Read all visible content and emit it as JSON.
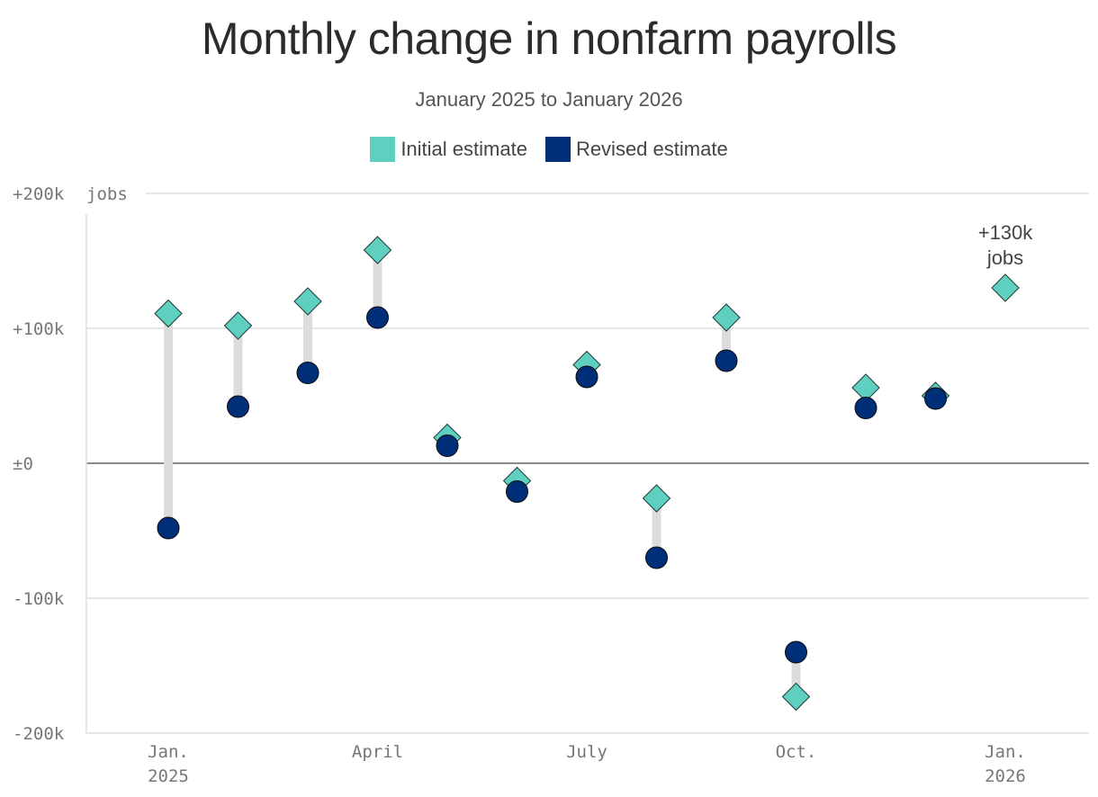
{
  "chart_data": {
    "type": "scatter",
    "title": "Monthly change in nonfarm payrolls",
    "subtitle": "January 2025 to January 2026",
    "xlabel": "",
    "ylabel": "jobs",
    "ylim": [
      -200,
      200
    ],
    "y_ticks": [
      {
        "value": 200,
        "label": "+200k"
      },
      {
        "value": 100,
        "label": "+100k"
      },
      {
        "value": 0,
        "label": "±0"
      },
      {
        "value": -100,
        "label": "-100k"
      },
      {
        "value": -200,
        "label": "-200k"
      }
    ],
    "y_unit_label": "jobs",
    "x_ticks": [
      {
        "index": 0,
        "line1": "Jan.",
        "line2": "2025"
      },
      {
        "index": 3,
        "line1": "April",
        "line2": ""
      },
      {
        "index": 6,
        "line1": "July",
        "line2": ""
      },
      {
        "index": 9,
        "line1": "Oct.",
        "line2": ""
      },
      {
        "index": 12,
        "line1": "Jan.",
        "line2": "2026"
      }
    ],
    "grid": true,
    "legend_position": "top-center",
    "series": [
      {
        "name": "Initial estimate",
        "color": "#5fd0c0",
        "marker": "diamond",
        "values": [
          111,
          102,
          120,
          158,
          19,
          -13,
          73,
          -26,
          108,
          -173,
          56,
          50,
          130
        ]
      },
      {
        "name": "Revised estimate",
        "color": "#002f7a",
        "marker": "circle",
        "values": [
          -48,
          42,
          67,
          108,
          13,
          -21,
          64,
          -70,
          76,
          -140,
          41,
          48,
          null
        ]
      }
    ],
    "annotations": [
      {
        "index": 12,
        "value": 130,
        "line1": "+130k",
        "line2": "jobs"
      }
    ]
  }
}
